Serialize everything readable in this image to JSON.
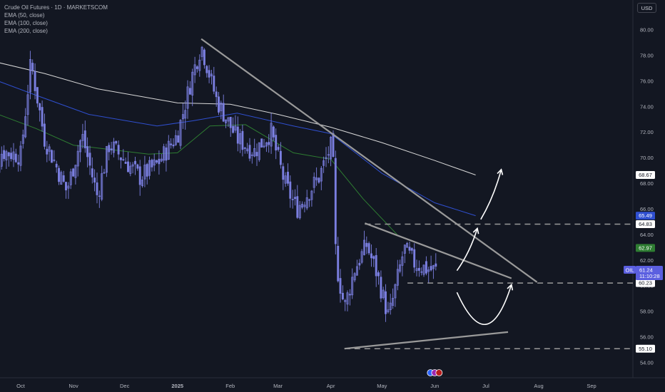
{
  "header": {
    "title": "Crude Oil Futures · 1D · MARKETSCOM",
    "indicators": [
      "EMA (50, close)",
      "EMA (100, close)",
      "EMA (200, close)"
    ],
    "currency": "USD"
  },
  "colors": {
    "background": "#131722",
    "candle": "#7b7fe0",
    "ema50": "#2e7d32",
    "ema100": "#2f4fd0",
    "ema200": "#d8d8d8",
    "trendline": "#9a9a9a",
    "dashed": "#9a9a9a",
    "arrow": "#ffffff",
    "price_badge": "#5b5fe0"
  },
  "chart_data": {
    "type": "candlestick",
    "title": "Crude Oil Futures · 1D · MARKETSCOM",
    "xlabel": "",
    "ylabel": "",
    "ylim": [
      54,
      81
    ],
    "y_ticks": [
      "54.00",
      "56.00",
      "58.00",
      "60.00",
      "62.00",
      "64.00",
      "66.00",
      "68.00",
      "70.00",
      "72.00",
      "74.00",
      "76.00",
      "78.00",
      "80.00"
    ],
    "x_ticks": [
      {
        "label": "Oct",
        "date": "2024-10-01"
      },
      {
        "label": "Nov",
        "date": "2024-11-01"
      },
      {
        "label": "Dec",
        "date": "2024-12-01"
      },
      {
        "label": "2025",
        "date": "2025-01-01"
      },
      {
        "label": "Feb",
        "date": "2025-02-01"
      },
      {
        "label": "Mar",
        "date": "2025-03-01"
      },
      {
        "label": "Apr",
        "date": "2025-04-01"
      },
      {
        "label": "May",
        "date": "2025-05-01"
      },
      {
        "label": "Jun",
        "date": "2025-06-01"
      },
      {
        "label": "Jul",
        "date": "2025-07-01"
      },
      {
        "label": "Aug",
        "date": "2025-08-01"
      },
      {
        "label": "Sep",
        "date": "2025-09-01"
      }
    ],
    "price_path": [
      {
        "date": "2024-09-10",
        "close": 66.9
      },
      {
        "date": "2024-09-20",
        "close": 70.5
      },
      {
        "date": "2024-10-01",
        "close": 70.2
      },
      {
        "date": "2024-10-07",
        "close": 77.5
      },
      {
        "date": "2024-10-15",
        "close": 71.5
      },
      {
        "date": "2024-10-28",
        "close": 67.4
      },
      {
        "date": "2024-11-06",
        "close": 71.8
      },
      {
        "date": "2024-11-15",
        "close": 67.0
      },
      {
        "date": "2024-11-22",
        "close": 71.1
      },
      {
        "date": "2024-12-10",
        "close": 68.5
      },
      {
        "date": "2024-12-20",
        "close": 69.5
      },
      {
        "date": "2025-01-01",
        "close": 71.8
      },
      {
        "date": "2025-01-10",
        "close": 76.6
      },
      {
        "date": "2025-01-15",
        "close": 78.8
      },
      {
        "date": "2025-01-24",
        "close": 74.5
      },
      {
        "date": "2025-02-05",
        "close": 71.5
      },
      {
        "date": "2025-02-15",
        "close": 70.5
      },
      {
        "date": "2025-02-25",
        "close": 72.0
      },
      {
        "date": "2025-03-05",
        "close": 68.0
      },
      {
        "date": "2025-03-12",
        "close": 66.0
      },
      {
        "date": "2025-03-25",
        "close": 68.5
      },
      {
        "date": "2025-04-02",
        "close": 71.2
      },
      {
        "date": "2025-04-04",
        "close": 61.9
      },
      {
        "date": "2025-04-09",
        "close": 58.3
      },
      {
        "date": "2025-04-15",
        "close": 61.3
      },
      {
        "date": "2025-04-22",
        "close": 63.2
      },
      {
        "date": "2025-04-28",
        "close": 61.0
      },
      {
        "date": "2025-05-05",
        "close": 57.5
      },
      {
        "date": "2025-05-08",
        "close": 59.3
      },
      {
        "date": "2025-05-14",
        "close": 62.9
      },
      {
        "date": "2025-05-20",
        "close": 61.8
      },
      {
        "date": "2025-05-28",
        "close": 61.3
      },
      {
        "date": "2025-06-02",
        "close": 61.24
      }
    ],
    "series": [
      {
        "name": "EMA (50, close)",
        "points": [
          {
            "date": "2024-09-10",
            "value": 73.8
          },
          {
            "date": "2024-10-10",
            "value": 72.3
          },
          {
            "date": "2024-11-01",
            "value": 71.0
          },
          {
            "date": "2024-12-15",
            "value": 70.3
          },
          {
            "date": "2025-01-01",
            "value": 70.4
          },
          {
            "date": "2025-01-20",
            "value": 72.5
          },
          {
            "date": "2025-02-10",
            "value": 72.6
          },
          {
            "date": "2025-03-10",
            "value": 70.4
          },
          {
            "date": "2025-04-01",
            "value": 69.9
          },
          {
            "date": "2025-04-20",
            "value": 66.8
          },
          {
            "date": "2025-05-10",
            "value": 64.0
          }
        ]
      },
      {
        "name": "EMA (100, close)",
        "points": [
          {
            "date": "2024-09-10",
            "value": 76.4
          },
          {
            "date": "2024-10-10",
            "value": 74.9
          },
          {
            "date": "2024-11-10",
            "value": 73.4
          },
          {
            "date": "2024-12-20",
            "value": 72.5
          },
          {
            "date": "2025-01-10",
            "value": 72.9
          },
          {
            "date": "2025-02-05",
            "value": 73.5
          },
          {
            "date": "2025-03-10",
            "value": 72.5
          },
          {
            "date": "2025-04-01",
            "value": 71.9
          },
          {
            "date": "2025-05-01",
            "value": 68.8
          },
          {
            "date": "2025-06-01",
            "value": 66.5
          },
          {
            "date": "2025-06-25",
            "value": 65.49
          }
        ]
      },
      {
        "name": "EMA (200, close)",
        "points": [
          {
            "date": "2024-09-10",
            "value": 77.7
          },
          {
            "date": "2024-10-15",
            "value": 76.6
          },
          {
            "date": "2024-11-15",
            "value": 75.4
          },
          {
            "date": "2025-01-01",
            "value": 74.3
          },
          {
            "date": "2025-02-01",
            "value": 74.2
          },
          {
            "date": "2025-03-01",
            "value": 73.4
          },
          {
            "date": "2025-04-01",
            "value": 72.4
          },
          {
            "date": "2025-05-01",
            "value": 71.2
          },
          {
            "date": "2025-06-01",
            "value": 69.8
          },
          {
            "date": "2025-06-25",
            "value": 68.67
          }
        ]
      }
    ],
    "trendlines": [
      {
        "from": {
          "date": "2025-01-15",
          "value": 79.3
        },
        "to": {
          "date": "2025-07-31",
          "value": 60.3
        }
      },
      {
        "from": {
          "date": "2025-04-21",
          "value": 64.9
        },
        "to": {
          "date": "2025-07-16",
          "value": 60.6
        }
      },
      {
        "from": {
          "date": "2025-04-09",
          "value": 55.1
        },
        "to": {
          "date": "2025-07-14",
          "value": 56.4
        }
      }
    ],
    "levels": [
      64.83,
      60.23,
      55.1
    ],
    "projection_arrows": [
      {
        "from": {
          "date": "2025-06-14",
          "value": 61.2
        },
        "to": {
          "date": "2025-06-26",
          "value": 64.5
        }
      },
      {
        "from": {
          "date": "2025-06-28",
          "value": 65.2
        },
        "to": {
          "date": "2025-07-10",
          "value": 69.1
        }
      },
      {
        "from": {
          "date": "2025-06-14",
          "value": 59.5
        },
        "to": {
          "date": "2025-07-16",
          "value": 60.1
        }
      }
    ],
    "price_labels": [
      {
        "value": 68.67,
        "text": "68.67",
        "bg": "#ffffff",
        "fg": "#131722"
      },
      {
        "value": 65.49,
        "text": "65.49",
        "bg": "#2f4fd0",
        "fg": "#ffffff"
      },
      {
        "value": 64.83,
        "text": "64.83",
        "bg": "#ffffff",
        "fg": "#131722"
      },
      {
        "value": 62.97,
        "text": "62.97",
        "bg": "#2e7d32",
        "fg": "#ffffff"
      },
      {
        "value": 60.23,
        "text": "60.23",
        "bg": "#ffffff",
        "fg": "#131722"
      },
      {
        "value": 55.1,
        "text": "55.10",
        "bg": "#ffffff",
        "fg": "#131722"
      }
    ],
    "last_price": {
      "symbol": "OIL",
      "value": 61.24,
      "text": "61.24",
      "countdown": "11:10:28"
    }
  }
}
